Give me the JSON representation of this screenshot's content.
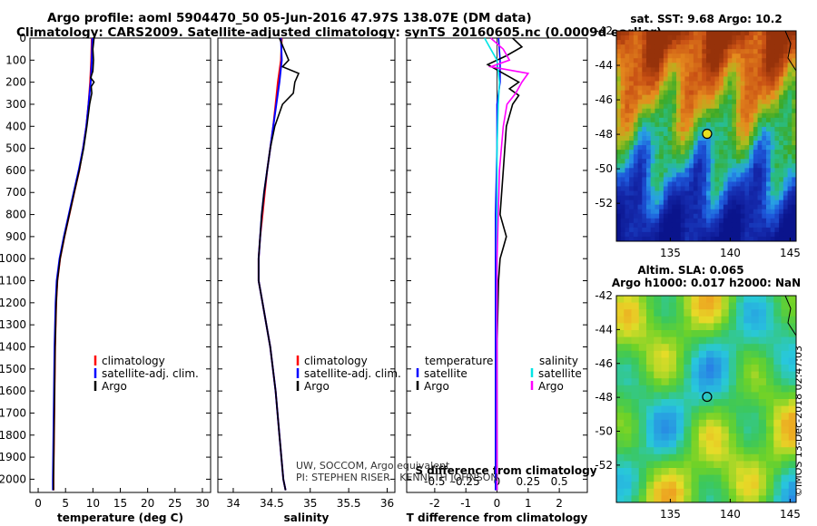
{
  "header": {
    "line1": "Argo profile: aoml 5904470_50 05-Jun-2016 47.97S 138.07E (DM data)",
    "line2": "Climatology: CARS2009. Satellite-adjusted climatology: synTS_20160605.nc (0.0009d earlier)"
  },
  "colors": {
    "climatology": "#ff0000",
    "satellite": "#0000ff",
    "argo": "#000000",
    "salinity_satellite": "#00e5e5",
    "salinity_argo": "#ff00ff"
  },
  "chart_data": [
    {
      "type": "line",
      "panel": "temperature",
      "xlabel": "temperature (deg C)",
      "ylabel": "",
      "xlim": [
        -1.5,
        31.5
      ],
      "ylim": [
        0,
        2060
      ],
      "xticks": [
        0,
        5,
        10,
        15,
        20,
        25,
        30
      ],
      "yticks": [
        0,
        100,
        200,
        300,
        400,
        500,
        600,
        700,
        800,
        900,
        1000,
        1100,
        1200,
        1300,
        1400,
        1500,
        1600,
        1700,
        1800,
        1900,
        2000
      ],
      "legend": [
        "climatology",
        "satellite-adj. clim.",
        "Argo"
      ],
      "series": [
        {
          "name": "climatology",
          "depth": [
            0,
            100,
            200,
            300,
            400,
            500,
            600,
            700,
            800,
            900,
            1000,
            1100,
            1200,
            1400,
            1600,
            1800,
            2000,
            2050
          ],
          "values": [
            9.8,
            9.7,
            9.5,
            9.2,
            8.8,
            8.2,
            7.5,
            6.6,
            5.7,
            4.8,
            4.0,
            3.5,
            3.3,
            3.1,
            3.0,
            2.9,
            2.8,
            2.8
          ]
        },
        {
          "name": "satellite-adj. clim.",
          "depth": [
            0,
            100,
            200,
            300,
            400,
            500,
            600,
            700,
            800,
            900,
            1000,
            1100,
            1200,
            1400,
            1600,
            1800,
            2000,
            2050
          ],
          "values": [
            9.9,
            9.8,
            9.6,
            9.2,
            8.8,
            8.2,
            7.4,
            6.5,
            5.6,
            4.7,
            3.9,
            3.4,
            3.2,
            3.0,
            2.9,
            2.8,
            2.7,
            2.7
          ]
        },
        {
          "name": "Argo",
          "depth": [
            0,
            50,
            100,
            150,
            180,
            200,
            220,
            250,
            300,
            400,
            500,
            600,
            700,
            800,
            900,
            1000,
            1100,
            1200,
            1400,
            1600,
            1800,
            2000,
            2050
          ],
          "values": [
            10.2,
            10.0,
            10.1,
            10.0,
            9.6,
            10.2,
            9.7,
            9.8,
            9.4,
            8.9,
            8.3,
            7.5,
            6.6,
            5.7,
            4.8,
            4.0,
            3.5,
            3.3,
            3.1,
            3.0,
            2.9,
            2.8,
            2.8
          ]
        }
      ]
    },
    {
      "type": "line",
      "panel": "salinity",
      "xlabel": "salinity",
      "xlim": [
        33.8,
        36.1
      ],
      "xticks": [
        34,
        34.5,
        35,
        35.5,
        36
      ],
      "ylim": [
        0,
        2060
      ],
      "legend": [
        "climatology",
        "satellite-adj. clim.",
        "Argo"
      ],
      "series": [
        {
          "name": "climatology",
          "depth": [
            0,
            100,
            200,
            300,
            400,
            500,
            600,
            700,
            800,
            900,
            1000,
            1100,
            1200,
            1400,
            1600,
            1800,
            2000,
            2050
          ],
          "values": [
            34.63,
            34.62,
            34.58,
            34.55,
            34.52,
            34.48,
            34.44,
            34.41,
            34.38,
            34.35,
            34.33,
            34.33,
            34.38,
            34.48,
            34.55,
            34.6,
            34.65,
            34.68
          ]
        },
        {
          "name": "satellite-adj. clim.",
          "depth": [
            0,
            100,
            200,
            300,
            400,
            500,
            600,
            700,
            800,
            900,
            1000,
            1100,
            1200,
            1400,
            1600,
            1800,
            2000,
            2050
          ],
          "values": [
            34.62,
            34.63,
            34.6,
            34.56,
            34.52,
            34.48,
            34.44,
            34.4,
            34.37,
            34.35,
            34.33,
            34.33,
            34.38,
            34.48,
            34.55,
            34.6,
            34.65,
            34.68
          ]
        },
        {
          "name": "Argo",
          "depth": [
            0,
            50,
            100,
            130,
            160,
            200,
            250,
            300,
            400,
            500,
            600,
            700,
            800,
            900,
            1000,
            1100,
            1200,
            1400,
            1600,
            1800,
            2000,
            2050
          ],
          "values": [
            34.6,
            34.66,
            34.72,
            34.64,
            34.85,
            34.8,
            34.78,
            34.64,
            34.54,
            34.48,
            34.44,
            34.4,
            34.37,
            34.35,
            34.33,
            34.33,
            34.38,
            34.48,
            34.55,
            34.6,
            34.65,
            34.68
          ]
        }
      ]
    },
    {
      "type": "line",
      "panel": "difference",
      "xlabel": "T difference from climatology",
      "xlabel_top": "S difference from climatology",
      "xlim": [
        -2.9,
        2.9
      ],
      "xticks": [
        -2,
        -1,
        0,
        1,
        2
      ],
      "xticks_top": [
        -0.5,
        -0.25,
        0,
        0.25,
        0.5
      ],
      "legend_left": {
        "heading": "temperature",
        "items": [
          "satellite",
          "Argo"
        ]
      },
      "legend_right": {
        "heading": "salinity",
        "items": [
          "satellite",
          "Argo"
        ]
      },
      "series": [
        {
          "name": "temperature satellite",
          "depth": [
            0,
            100,
            200,
            300,
            500,
            800,
            1000,
            1500,
            2050
          ],
          "values": [
            0.05,
            0.1,
            0.1,
            0.0,
            0.0,
            -0.05,
            -0.05,
            -0.05,
            -0.05
          ]
        },
        {
          "name": "temperature Argo",
          "depth": [
            0,
            40,
            80,
            120,
            160,
            200,
            230,
            260,
            300,
            400,
            600,
            800,
            900,
            950,
            1000,
            1100,
            1400,
            2050
          ],
          "values": [
            0.5,
            0.8,
            0.3,
            -0.3,
            0.2,
            0.7,
            0.4,
            0.7,
            0.5,
            0.3,
            0.2,
            0.1,
            0.3,
            0.2,
            0.1,
            0.05,
            0.0,
            0.0
          ]
        },
        {
          "name": "salinity satellite",
          "depth": [
            0,
            50,
            100,
            200,
            300,
            500,
            800,
            1000,
            1500,
            2050
          ],
          "values": [
            -0.1,
            -0.05,
            0.0,
            0.02,
            0.01,
            0.0,
            0.0,
            0.0,
            0.0,
            0.0
          ]
        },
        {
          "name": "salinity Argo",
          "depth": [
            0,
            50,
            100,
            130,
            160,
            200,
            250,
            300,
            400,
            600,
            800,
            1000,
            1200,
            2050
          ],
          "values": [
            -0.05,
            0.05,
            0.1,
            -0.05,
            0.25,
            0.2,
            0.15,
            0.08,
            0.05,
            0.02,
            0.01,
            0.0,
            0.0,
            0.0
          ]
        }
      ]
    },
    {
      "type": "heatmap",
      "panel": "sst_map",
      "title": "sat. SST: 9.68 Argo: 10.2",
      "xticks": [
        135,
        140,
        145
      ],
      "yticks": [
        -42,
        -44,
        -46,
        -48,
        -50,
        -52
      ],
      "xlim": [
        130.5,
        145.5
      ],
      "ylim": [
        -54.2,
        -42
      ],
      "argo_position": {
        "lon": 138.07,
        "lat": -47.97
      }
    },
    {
      "type": "heatmap",
      "panel": "sla_map",
      "title": "Altim. SLA: 0.065",
      "subtitle": "Argo h1000: 0.017 h2000: NaN",
      "xticks": [
        135,
        140,
        145
      ],
      "yticks": [
        -42,
        -44,
        -46,
        -48,
        -50,
        -52
      ],
      "xlim": [
        130.5,
        145.5
      ],
      "ylim": [
        -54.2,
        -42
      ],
      "argo_position": {
        "lon": 138.07,
        "lat": -47.97
      }
    }
  ],
  "annotations": {
    "credit1": "UW, SOCCOM, Argo equivalent",
    "credit2": "PI: STEPHEN RISER , KENNETH JOHNSON",
    "stamp": "©IMOS 13-Dec-2018 02:47:03"
  }
}
